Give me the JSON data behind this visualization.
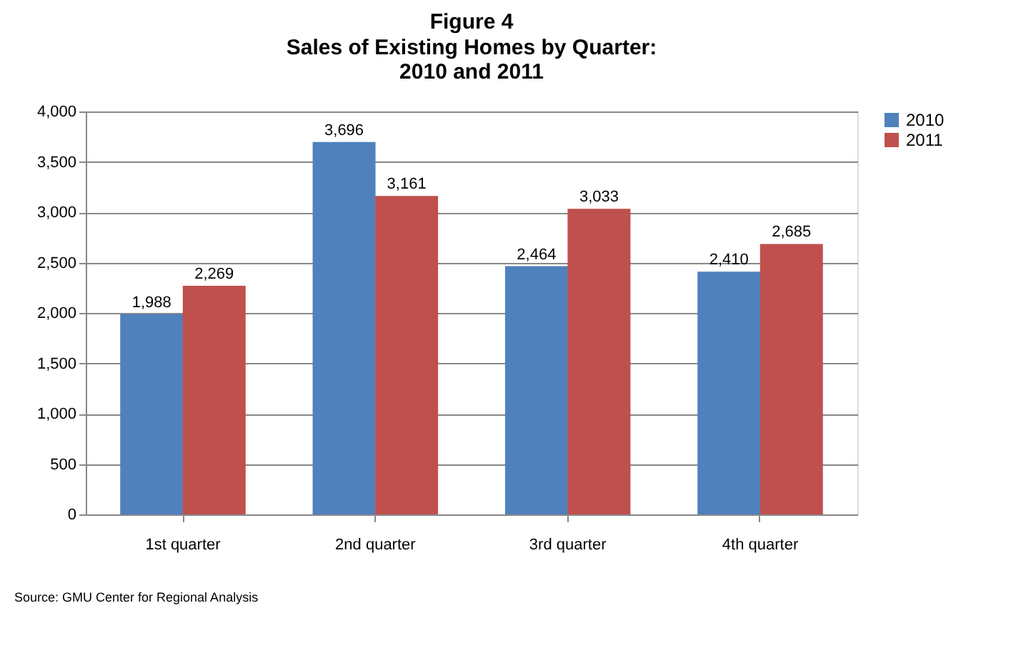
{
  "chart_data": {
    "type": "bar",
    "title": "Figure 4",
    "subtitle": "Sales of Existing Homes by Quarter:\n2010 and 2011",
    "categories": [
      "1st quarter",
      "2nd quarter",
      "3rd quarter",
      "4th quarter"
    ],
    "series": [
      {
        "name": "2010",
        "color": "#4f81bd",
        "values": [
          1988,
          3696,
          2464,
          2410
        ],
        "value_labels": [
          "1,988",
          "3,696",
          "2,464",
          "2,410"
        ]
      },
      {
        "name": "2011",
        "color": "#c0504d",
        "values": [
          2269,
          3161,
          3033,
          2685
        ],
        "value_labels": [
          "2,269",
          "3,161",
          "3,033",
          "2,685"
        ]
      }
    ],
    "ylim": [
      0,
      4000
    ],
    "yticks": [
      0,
      {
        "value": 500,
        "label": "500"
      },
      {
        "value": 1000,
        "label": "1,000"
      },
      {
        "value": 1500,
        "label": "1,500"
      },
      {
        "value": 2000,
        "label": "2,000"
      },
      {
        "value": 2500,
        "label": "2,500"
      },
      {
        "value": 3000,
        "label": "3,000"
      },
      {
        "value": 3500,
        "label": "3,500"
      },
      {
        "value": 4000,
        "label": "4,000"
      }
    ],
    "grid": "y",
    "legend": "right",
    "annotations": [
      "Source: GMU Center for Regional Analysis"
    ]
  }
}
